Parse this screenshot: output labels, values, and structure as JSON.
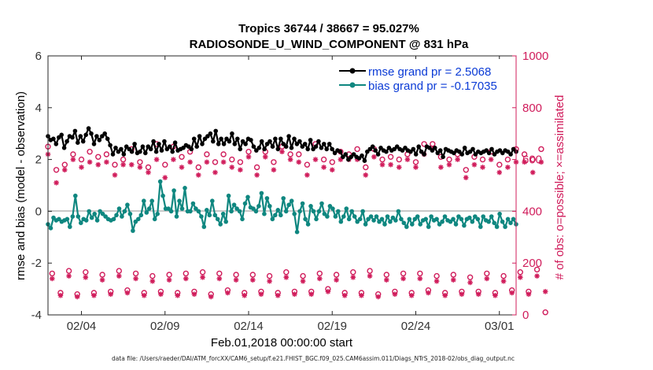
{
  "chart_data": {
    "type": "line",
    "title_line1": "Tropics 36744 / 38667 = 95.027%",
    "title_line2": "RADIOSONDE_U_WIND_COMPONENT @ 831 hPa",
    "xlabel": "Feb.01,2018 00:00:00 start",
    "ylabel_left": "rmse and bias (model - observation)",
    "ylabel_right": "# of obs: o=possible; ×=assimilated",
    "footer": "data file: /Users/raeder/DAI/ATM_forcXX/CAM6_setup/f.e21.FHIST_BGC.f09_025.CAM6assim.011/Diags_NTrS_2018-02/obs_diag_output.nc",
    "xlim": [
      1,
      29
    ],
    "ylim_left": [
      -4,
      6
    ],
    "ylim_right": [
      0,
      1000
    ],
    "x_ticks": [
      3,
      8,
      13,
      18,
      23,
      28
    ],
    "x_tick_labels": [
      "02/04",
      "02/09",
      "02/14",
      "02/19",
      "02/24",
      "03/01"
    ],
    "y_ticks_left": [
      "-4",
      "-2",
      "0",
      "2",
      "4",
      "6"
    ],
    "y_ticks_right": [
      "0",
      "200",
      "400",
      "600",
      "800",
      "1000"
    ],
    "legend_position": "top-right",
    "colors": {
      "rmse": "#000000",
      "bias": "#0f8780",
      "obs": "#d01c5b",
      "zero_line": "#c8c8c8"
    },
    "series": [
      {
        "name": "rmse grand pr = 2.5068",
        "axis": "left",
        "values": [
          2.9,
          2.75,
          2.8,
          2.6,
          2.85,
          2.95,
          2.45,
          2.7,
          2.9,
          2.85,
          3.1,
          2.65,
          2.9,
          2.7,
          2.95,
          3.2,
          3.0,
          2.6,
          2.9,
          2.75,
          2.9,
          3.0,
          2.8,
          2.55,
          2.2,
          2.45,
          2.3,
          2.4,
          2.2,
          2.5,
          2.4,
          2.3,
          2.6,
          2.25,
          2.3,
          2.5,
          2.25,
          2.5,
          2.4,
          2.7,
          2.3,
          2.6,
          2.35,
          2.7,
          2.4,
          2.5,
          2.3,
          2.65,
          2.35,
          2.4,
          2.45,
          2.55,
          2.5,
          2.4,
          2.8,
          2.5,
          2.9,
          2.6,
          2.8,
          2.9,
          3.0,
          2.7,
          3.1,
          2.6,
          2.8,
          2.6,
          2.8,
          2.7,
          3.0,
          2.6,
          2.8,
          2.4,
          2.7,
          2.6,
          2.8,
          2.75,
          2.5,
          2.35,
          2.45,
          2.7,
          2.4,
          2.6,
          2.7,
          2.5,
          2.8,
          2.4,
          2.8,
          2.6,
          2.5,
          2.9,
          2.45,
          2.8,
          2.6,
          2.7,
          2.5,
          2.6,
          2.4,
          2.75,
          2.4,
          2.5,
          2.7,
          2.45,
          2.6,
          2.4,
          2.6,
          2.4,
          2.25,
          2.35,
          2.3,
          2.1,
          2.2,
          2.0,
          2.1,
          2.2,
          2.1,
          2.05,
          2.15,
          1.95,
          2.3,
          2.4,
          2.5,
          2.35,
          2.2,
          2.45,
          2.35,
          2.3,
          2.45,
          2.35,
          2.4,
          2.5,
          2.4,
          2.35,
          2.45,
          2.35,
          2.3,
          2.4,
          2.2,
          2.5,
          2.3,
          2.2,
          2.5,
          2.45,
          2.35,
          2.45,
          2.25,
          2.35,
          2.1,
          2.4,
          2.35,
          2.3,
          2.25,
          2.35,
          2.3,
          2.2,
          2.45,
          2.25,
          2.3,
          2.4,
          2.2,
          2.3,
          2.25,
          2.3,
          2.35,
          2.25,
          2.4,
          2.2,
          2.3,
          2.35,
          2.25,
          2.35,
          2.3,
          2.2,
          2.4,
          2.3
        ]
      },
      {
        "name": "bias grand pr = -0.17035",
        "axis": "left",
        "values": [
          -0.5,
          -0.65,
          -0.25,
          -0.35,
          -0.3,
          -0.4,
          -0.35,
          -0.3,
          -0.6,
          -0.2,
          0.6,
          -0.2,
          -0.45,
          -0.3,
          -0.35,
          0.0,
          -0.25,
          -0.1,
          -0.35,
          0.0,
          -0.1,
          -0.2,
          -0.3,
          -0.35,
          -0.3,
          -0.15,
          0.1,
          -0.2,
          0.0,
          0.25,
          -0.1,
          -0.75,
          -0.4,
          -0.3,
          -0.15,
          0.4,
          -0.05,
          0.1,
          0.4,
          -0.3,
          -0.1,
          1.15,
          0.6,
          0.1,
          0.1,
          0.0,
          0.8,
          -0.2,
          0.4,
          0.1,
          0.9,
          0.0,
          0.0,
          0.3,
          0.1,
          0.0,
          -0.2,
          -0.6,
          0.05,
          -0.15,
          0.4,
          -0.15,
          -0.3,
          -0.5,
          -0.1,
          -0.4,
          0.6,
          0.0,
          0.25,
          0.1,
          0.0,
          -0.3,
          0.3,
          0.55,
          0.15,
          0.1,
          0.0,
          0.2,
          0.7,
          -0.1,
          0.5,
          0.2,
          -0.3,
          -0.15,
          0.05,
          -0.15,
          0.5,
          0.0,
          0.25,
          0.4,
          -0.1,
          -0.8,
          0.0,
          0.3,
          -0.3,
          -0.5,
          0.2,
          0.0,
          -0.3,
          0.0,
          0.3,
          -0.1,
          -0.2,
          0.2,
          0.1,
          -0.2,
          0.0,
          -0.4,
          -0.2,
          0.1,
          -0.3,
          0.0,
          -0.2,
          -0.4,
          -0.3,
          0.0,
          -0.5,
          -0.3,
          -0.2,
          -0.35,
          -0.2,
          -0.4,
          -0.3,
          -0.5,
          -0.2,
          -0.4,
          -0.25,
          -0.35,
          0.0,
          -0.3,
          -0.45,
          -0.6,
          -0.3,
          -0.5,
          -0.3,
          -0.2,
          -0.5,
          -0.35,
          -0.3,
          -0.6,
          -0.2,
          -0.35,
          -0.3,
          -0.5,
          -0.4,
          -0.2,
          -0.35,
          -0.4,
          -0.3,
          -0.5,
          -0.2,
          -0.3,
          -0.55,
          -0.3,
          -0.25,
          -0.4,
          -0.2,
          -0.3,
          -0.6,
          -0.2,
          -0.35,
          -0.4,
          -0.2,
          -0.45,
          -0.6,
          -0.1,
          -0.4,
          -0.6,
          -0.3,
          -0.45,
          -0.3,
          -0.5
        ]
      },
      {
        "name": "possible obs (o), 00Z/12Z",
        "axis": "right",
        "marker": "o",
        "values": [
          650,
          560,
          580,
          620,
          600,
          630,
          610,
          620,
          580,
          600,
          640,
          590,
          570,
          660,
          580,
          650,
          610,
          630,
          570,
          620,
          590,
          620,
          600,
          590,
          630,
          570,
          630,
          590,
          650,
          620,
          620,
          580,
          660,
          600,
          590,
          630,
          620,
          640,
          570,
          640,
          600,
          610,
          600,
          620,
          590,
          660,
          660,
          610,
          600,
          620,
          560,
          610,
          600,
          630,
          580,
          600,
          640,
          620,
          600,
          640
        ]
      },
      {
        "name": "assimilated obs (×), 00Z/12Z",
        "axis": "right",
        "marker": "x",
        "values": [
          620,
          510,
          560,
          600,
          570,
          590,
          580,
          590,
          540,
          580,
          580,
          570,
          550,
          600,
          530,
          600,
          570,
          590,
          540,
          590,
          550,
          590,
          570,
          560,
          610,
          540,
          610,
          560,
          630,
          600,
          590,
          540,
          600,
          570,
          560,
          600,
          600,
          600,
          540,
          610,
          580,
          580,
          570,
          600,
          570,
          620,
          640,
          570,
          580,
          600,
          530,
          580,
          570,
          600,
          550,
          570,
          590,
          590,
          550,
          590
        ]
      },
      {
        "name": "possible obs (o), 06Z/18Z",
        "axis": "right",
        "marker": "o",
        "values": [
          160,
          85,
          170,
          80,
          165,
          85,
          155,
          90,
          170,
          95,
          160,
          85,
          150,
          90,
          155,
          85,
          160,
          90,
          165,
          80,
          160,
          95,
          155,
          85,
          155,
          90,
          150,
          85,
          165,
          90,
          150,
          90,
          160,
          100,
          155,
          85,
          165,
          85,
          170,
          80,
          155,
          90,
          160,
          85,
          160,
          95,
          150,
          85,
          155,
          90,
          145,
          90,
          160,
          85,
          150,
          95,
          165,
          90,
          175,
          10
        ]
      },
      {
        "name": "assimilated obs (×), 06Z/18Z",
        "axis": "right",
        "marker": "x",
        "values": [
          140,
          75,
          150,
          70,
          145,
          75,
          135,
          80,
          150,
          85,
          140,
          75,
          130,
          80,
          135,
          75,
          140,
          80,
          145,
          70,
          140,
          85,
          135,
          75,
          135,
          80,
          130,
          75,
          145,
          80,
          130,
          80,
          140,
          90,
          135,
          75,
          145,
          75,
          150,
          70,
          135,
          80,
          140,
          75,
          140,
          85,
          130,
          75,
          135,
          80,
          125,
          80,
          140,
          75,
          130,
          85,
          145,
          80,
          150,
          90
        ]
      }
    ]
  }
}
